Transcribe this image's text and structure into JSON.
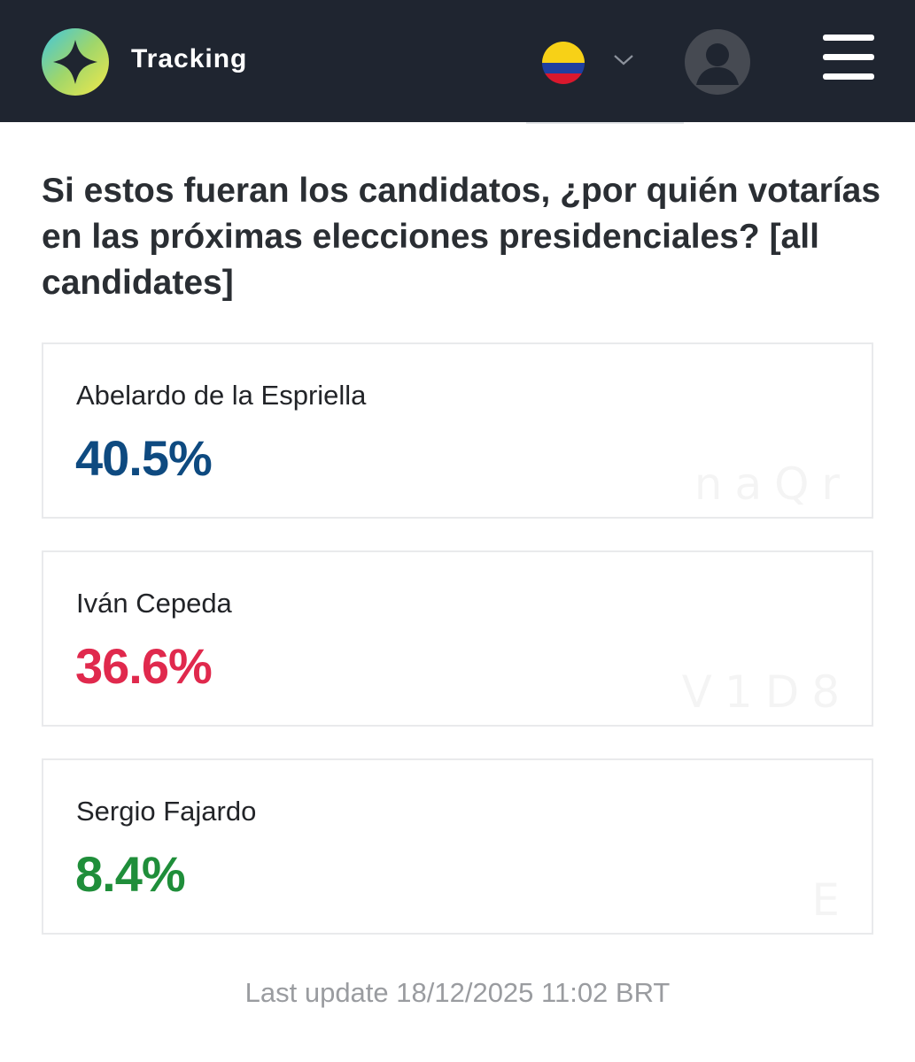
{
  "header": {
    "brand": "Tracking",
    "country_flag": "colombia-flag",
    "colors": {
      "bar": "#1f2530"
    }
  },
  "question": {
    "text": "Si estos fueran los candidatos, ¿por quién votarías en las próximas elecciones presidenciales? [all candidates]"
  },
  "results": [
    {
      "name": "Abelardo de la Espriella",
      "percent": "40.5%",
      "color": "#0e4a80"
    },
    {
      "name": "Iván Cepeda",
      "percent": "36.6%",
      "color": "#e0294d"
    },
    {
      "name": "Sergio Fajardo",
      "percent": "8.4%",
      "color": "#1f8e3a"
    }
  ],
  "watermarks": [
    "naQr",
    "V1D8",
    "E"
  ],
  "footer": {
    "last_update": "Last update 18/12/2025 11:02 BRT"
  }
}
